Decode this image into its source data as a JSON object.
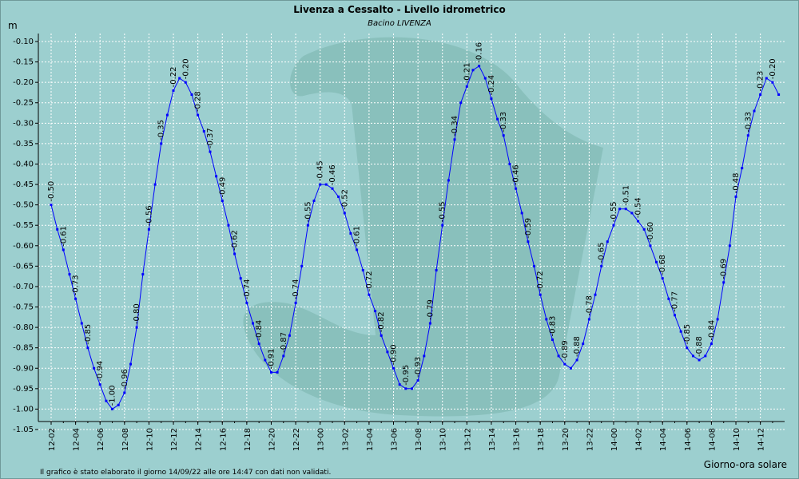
{
  "chart_data": {
    "type": "line",
    "title": "Livenza a Cessalto - Livello idrometrico",
    "subtitle": "Bacino LIVENZA",
    "ylabel": "m",
    "xlabel": "Giorno-ora solare",
    "ylim": [
      -1.05,
      -0.1
    ],
    "yticks": [
      -0.1,
      -0.15,
      -0.2,
      -0.25,
      -0.3,
      -0.35,
      -0.4,
      -0.45,
      -0.5,
      -0.55,
      -0.6,
      -0.65,
      -0.7,
      -0.75,
      -0.8,
      -0.85,
      -0.9,
      -0.95,
      -1.0,
      -1.05
    ],
    "ytick_labels": [
      "-0.10",
      "-0.15",
      "-0.20",
      "-0.25",
      "-0.30",
      "-0.35",
      "-0.40",
      "-0.45",
      "-0.50",
      "-0.55",
      "-0.60",
      "-0.65",
      "-0.70",
      "-0.75",
      "-0.80",
      "-0.85",
      "-0.90",
      "-0.95",
      "-1.00",
      "-1.05"
    ],
    "xtick_labels": [
      "12-02",
      "12-04",
      "12-06",
      "12-08",
      "12-10",
      "12-12",
      "12-14",
      "12-16",
      "12-18",
      "12-20",
      "12-22",
      "13-00",
      "13-02",
      "13-04",
      "13-06",
      "13-08",
      "13-10",
      "13-12",
      "13-14",
      "13-16",
      "13-18",
      "13-20",
      "13-22",
      "14-00",
      "14-02",
      "14-04",
      "14-06",
      "14-08",
      "14-10",
      "14-12"
    ],
    "series": [
      {
        "name": "Livello idrometrico",
        "color": "#0000ff",
        "values": [
          -0.5,
          -0.56,
          -0.61,
          -0.67,
          -0.73,
          -0.79,
          -0.85,
          -0.9,
          -0.94,
          -0.98,
          -1.0,
          -0.99,
          -0.96,
          -0.89,
          -0.8,
          -0.67,
          -0.56,
          -0.45,
          -0.35,
          -0.28,
          -0.22,
          -0.19,
          -0.2,
          -0.23,
          -0.28,
          -0.32,
          -0.37,
          -0.43,
          -0.49,
          -0.55,
          -0.62,
          -0.68,
          -0.74,
          -0.79,
          -0.84,
          -0.88,
          -0.91,
          -0.91,
          -0.87,
          -0.82,
          -0.74,
          -0.65,
          -0.55,
          -0.49,
          -0.45,
          -0.45,
          -0.46,
          -0.48,
          -0.52,
          -0.57,
          -0.61,
          -0.66,
          -0.72,
          -0.76,
          -0.82,
          -0.86,
          -0.9,
          -0.94,
          -0.95,
          -0.95,
          -0.93,
          -0.87,
          -0.79,
          -0.66,
          -0.55,
          -0.44,
          -0.34,
          -0.25,
          -0.21,
          -0.17,
          -0.16,
          -0.19,
          -0.24,
          -0.29,
          -0.33,
          -0.4,
          -0.46,
          -0.52,
          -0.59,
          -0.65,
          -0.72,
          -0.78,
          -0.83,
          -0.87,
          -0.89,
          -0.9,
          -0.88,
          -0.84,
          -0.78,
          -0.72,
          -0.65,
          -0.59,
          -0.55,
          -0.51,
          -0.51,
          -0.52,
          -0.54,
          -0.56,
          -0.6,
          -0.64,
          -0.68,
          -0.73,
          -0.77,
          -0.81,
          -0.85,
          -0.87,
          -0.88,
          -0.87,
          -0.84,
          -0.78,
          -0.69,
          -0.6,
          -0.48,
          -0.41,
          -0.33,
          -0.27,
          -0.23,
          -0.19,
          -0.2,
          -0.23
        ]
      }
    ],
    "data_labels": [
      {
        "i": 0,
        "text": "-0.50"
      },
      {
        "i": 2,
        "text": "-0.61"
      },
      {
        "i": 4,
        "text": "-0.73"
      },
      {
        "i": 6,
        "text": "-0.85"
      },
      {
        "i": 8,
        "text": "-0.94"
      },
      {
        "i": 10,
        "text": "-1.00"
      },
      {
        "i": 12,
        "text": "-0.96"
      },
      {
        "i": 14,
        "text": "-0.80"
      },
      {
        "i": 16,
        "text": "-0.56"
      },
      {
        "i": 18,
        "text": "-0.35"
      },
      {
        "i": 20,
        "text": "-0.22"
      },
      {
        "i": 22,
        "text": "-0.20"
      },
      {
        "i": 24,
        "text": "-0.28"
      },
      {
        "i": 26,
        "text": "-0.37"
      },
      {
        "i": 28,
        "text": "-0.49"
      },
      {
        "i": 30,
        "text": "-0.62"
      },
      {
        "i": 32,
        "text": "-0.74"
      },
      {
        "i": 34,
        "text": "-0.84"
      },
      {
        "i": 36,
        "text": "-0.91"
      },
      {
        "i": 38,
        "text": "-0.87"
      },
      {
        "i": 40,
        "text": "-0.74"
      },
      {
        "i": 42,
        "text": "-0.55"
      },
      {
        "i": 44,
        "text": "-0.45"
      },
      {
        "i": 46,
        "text": "-0.46"
      },
      {
        "i": 48,
        "text": "-0.52"
      },
      {
        "i": 50,
        "text": "-0.61"
      },
      {
        "i": 52,
        "text": "-0.72"
      },
      {
        "i": 54,
        "text": "-0.82"
      },
      {
        "i": 56,
        "text": "-0.90"
      },
      {
        "i": 58,
        "text": "-0.95"
      },
      {
        "i": 60,
        "text": "-0.93"
      },
      {
        "i": 62,
        "text": "-0.79"
      },
      {
        "i": 64,
        "text": "-0.55"
      },
      {
        "i": 66,
        "text": "-0.34"
      },
      {
        "i": 68,
        "text": "-0.21"
      },
      {
        "i": 70,
        "text": "-0.16"
      },
      {
        "i": 72,
        "text": "-0.24"
      },
      {
        "i": 74,
        "text": "-0.33"
      },
      {
        "i": 76,
        "text": "-0.46"
      },
      {
        "i": 78,
        "text": "-0.59"
      },
      {
        "i": 80,
        "text": "-0.72"
      },
      {
        "i": 82,
        "text": "-0.83"
      },
      {
        "i": 84,
        "text": "-0.89"
      },
      {
        "i": 86,
        "text": "-0.88"
      },
      {
        "i": 88,
        "text": "-0.78"
      },
      {
        "i": 90,
        "text": "-0.65"
      },
      {
        "i": 92,
        "text": "-0.55"
      },
      {
        "i": 94,
        "text": "-0.51"
      },
      {
        "i": 96,
        "text": "-0.54"
      },
      {
        "i": 98,
        "text": "-0.60"
      },
      {
        "i": 100,
        "text": "-0.68"
      },
      {
        "i": 102,
        "text": "-0.77"
      },
      {
        "i": 104,
        "text": "-0.85"
      },
      {
        "i": 106,
        "text": "-0.88"
      },
      {
        "i": 108,
        "text": "-0.84"
      },
      {
        "i": 110,
        "text": "-0.69"
      },
      {
        "i": 112,
        "text": "-0.48"
      },
      {
        "i": 114,
        "text": "-0.33"
      },
      {
        "i": 116,
        "text": "-0.23"
      },
      {
        "i": 118,
        "text": "-0.20"
      }
    ],
    "note": "Il grafico è stato elaborato il giorno 14/09/22 alle ore 14:47 con dati non validati.",
    "colors": {
      "background": "#9ccfcf",
      "plot": "#9ccfcf",
      "grid": "#ffffff",
      "line": "#0000ff",
      "watermark": "#86bdb8"
    }
  }
}
